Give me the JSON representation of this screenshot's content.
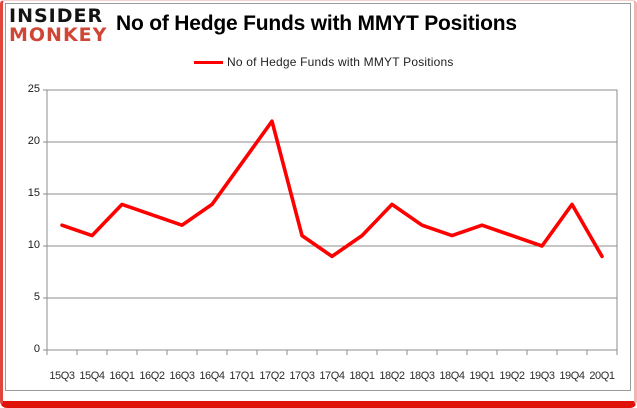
{
  "logo": {
    "line1": "INSIDER",
    "line2": "MONKEY"
  },
  "header": {
    "title": "No of Hedge Funds with MMYT Positions"
  },
  "legend": {
    "label": "No of Hedge Funds with MMYT Positions",
    "line_color": "#FF0000"
  },
  "chart_data": {
    "type": "line",
    "title": "No of Hedge Funds with MMYT Positions",
    "series": [
      {
        "name": "No of Hedge Funds with MMYT Positions",
        "color": "#FF0000",
        "values": [
          12,
          11,
          14,
          13,
          12,
          14,
          18,
          22,
          11,
          9,
          11,
          14,
          12,
          11,
          12,
          11,
          10,
          14,
          9
        ]
      }
    ],
    "categories": [
      "15Q3",
      "15Q4",
      "16Q1",
      "16Q2",
      "16Q3",
      "16Q4",
      "17Q1",
      "17Q2",
      "17Q3",
      "17Q4",
      "18Q1",
      "18Q2",
      "18Q3",
      "18Q4",
      "19Q1",
      "19Q2",
      "19Q3",
      "19Q4",
      "20Q1"
    ],
    "xlabel": "",
    "ylabel": "",
    "ylim": [
      0,
      25
    ],
    "yticks": [
      0,
      5,
      10,
      15,
      20,
      25
    ],
    "grid": true,
    "gridline_color": "#8c8c8c",
    "legend_position": "top"
  }
}
